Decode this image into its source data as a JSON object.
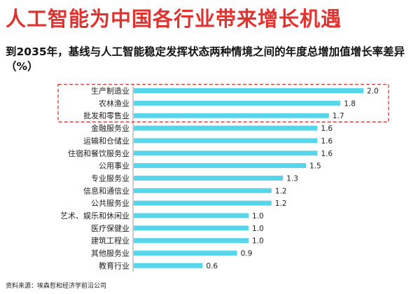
{
  "title": "人工智能为中国各行业带来增长机遇",
  "subtitle": "到2035年，基线与人工智能稳定发挥状态两种情境之间的年度总增加值增长率差异（%）",
  "source": "资料来源：埃森哲和经济学前沿公司",
  "colors": {
    "title": "#e0332f",
    "bar": "#57d5ea",
    "highlight_box": "#d9362e"
  },
  "chart_data": {
    "type": "bar",
    "orientation": "horizontal",
    "title": "",
    "xlabel": "",
    "ylabel": "",
    "categories": [
      "生产制造业",
      "农林渔业",
      "批发和零售业",
      "金融服务业",
      "运输和仓储业",
      "住宿和餐饮服务业",
      "公用事业",
      "专业服务业",
      "信息和通信业",
      "公共服务业",
      "艺术、娱乐和休闲业",
      "医疗保健业",
      "建筑工程业",
      "其他服务业",
      "教育行业"
    ],
    "values": [
      2.0,
      1.8,
      1.7,
      1.6,
      1.6,
      1.6,
      1.5,
      1.3,
      1.2,
      1.2,
      1.0,
      1.0,
      1.0,
      0.9,
      0.6
    ],
    "value_labels": [
      "2.0",
      "1.8",
      "1.7",
      "1.6",
      "1.6",
      "1.6",
      "1.5",
      "1.3",
      "1.2",
      "1.2",
      "1.0",
      "1.0",
      "1.0",
      "0.9",
      "0.6"
    ],
    "xlim": [
      0,
      2.0
    ],
    "grid": false,
    "highlighted_categories": [
      "生产制造业",
      "农林渔业",
      "批发和零售业"
    ]
  }
}
